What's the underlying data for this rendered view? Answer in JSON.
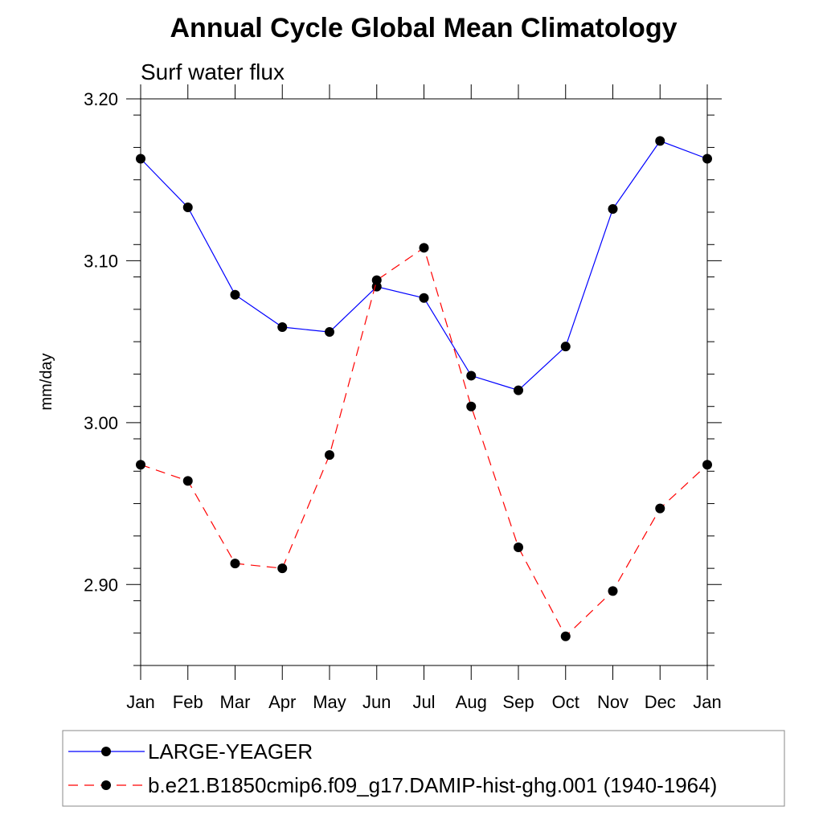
{
  "chart_data": {
    "type": "line",
    "title": "Annual Cycle Global Mean Climatology",
    "subtitle": "Surf water flux",
    "xlabel": "",
    "ylabel": "mm/day",
    "categories": [
      "Jan",
      "Feb",
      "Mar",
      "Apr",
      "May",
      "Jun",
      "Jul",
      "Aug",
      "Sep",
      "Oct",
      "Nov",
      "Dec",
      "Jan"
    ],
    "ylim": [
      2.85,
      3.2
    ],
    "yticks": [
      2.9,
      3.0,
      3.1,
      3.2
    ],
    "ytick_labels": [
      "2.90",
      "3.00",
      "3.10",
      "3.20"
    ],
    "grid": false,
    "legend_position": "bottom",
    "series": [
      {
        "name": "LARGE-YEAGER",
        "color": "#0000ff",
        "dash": "solid",
        "marker": "filled-circle",
        "values": [
          3.163,
          3.133,
          3.079,
          3.059,
          3.056,
          3.084,
          3.077,
          3.029,
          3.02,
          3.047,
          3.132,
          3.174,
          3.163
        ]
      },
      {
        "name": "b.e21.B1850cmip6.f09_g17.DAMIP-hist-ghg.001 (1940-1964)",
        "color": "#ff0000",
        "dash": "dashed",
        "marker": "filled-circle",
        "values": [
          2.974,
          2.964,
          2.913,
          2.91,
          2.98,
          3.088,
          3.108,
          3.01,
          2.923,
          2.868,
          2.896,
          2.947,
          2.974
        ]
      }
    ]
  }
}
